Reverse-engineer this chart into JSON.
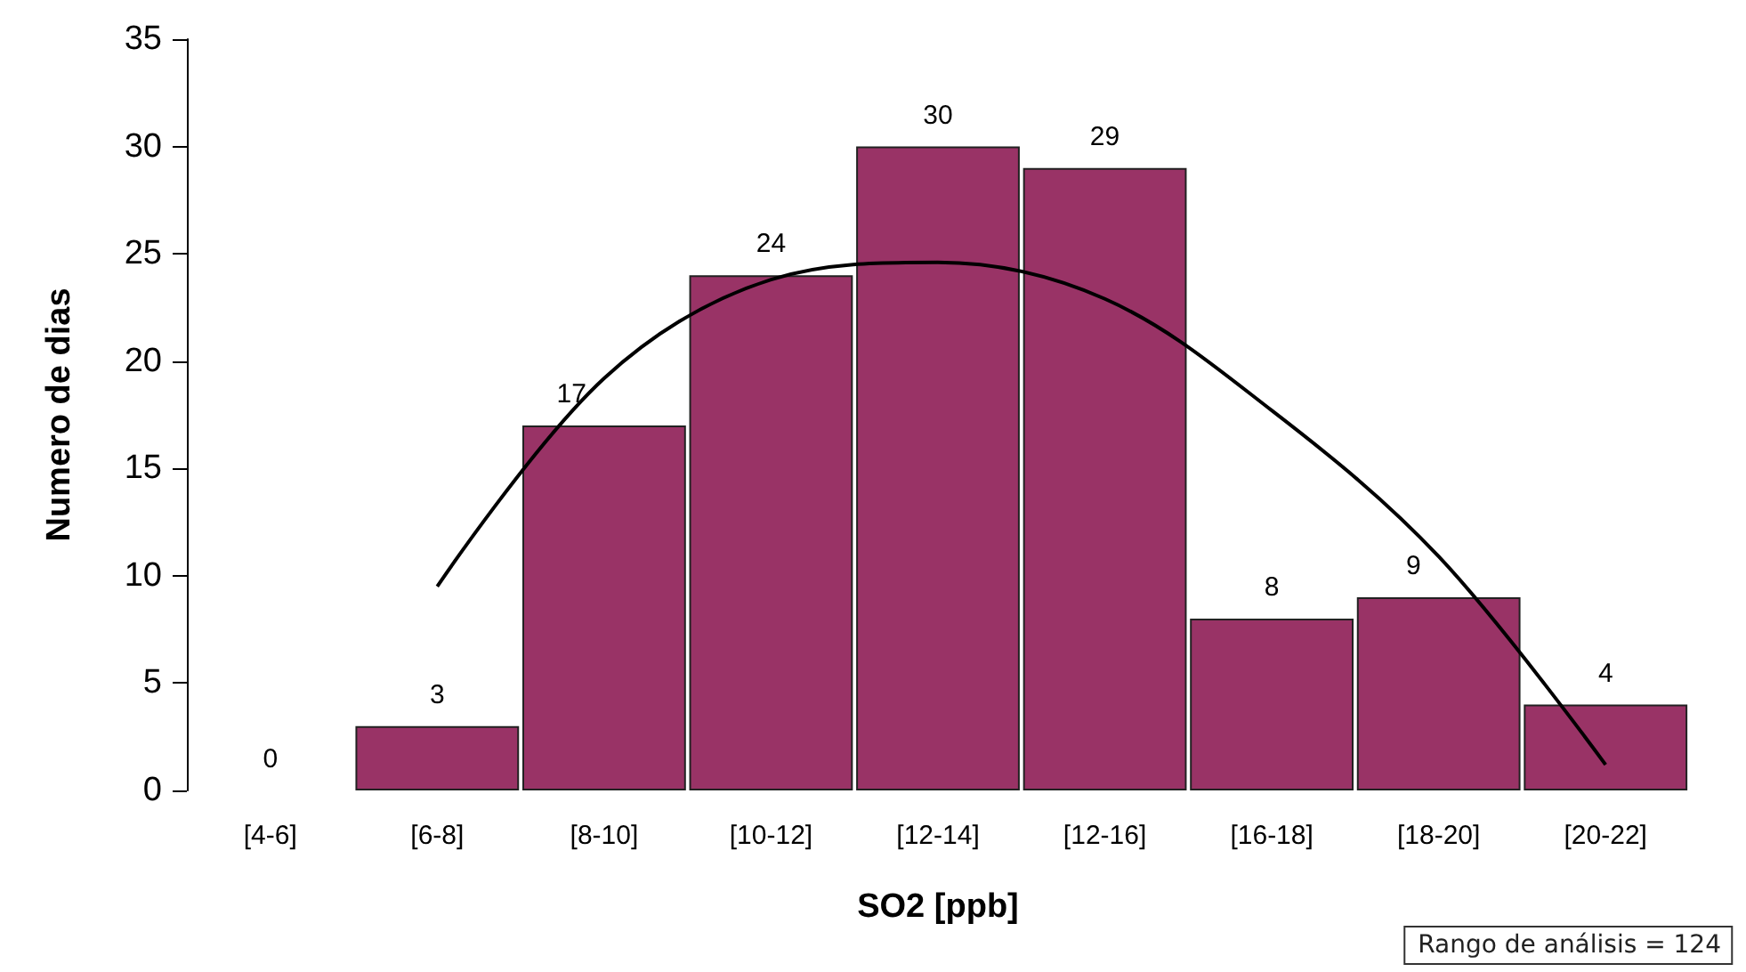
{
  "chart_data": {
    "type": "bar",
    "xlabel": "SO2 [ppb]",
    "ylabel": "Numero de dias",
    "categories": [
      "[4-6]",
      "[6-8]",
      "[8-10]",
      "[10-12]",
      "[12-14]",
      "[12-16]",
      "[16-18]",
      "[18-20]",
      "[20-22]"
    ],
    "series": [
      {
        "color": "#993366",
        "values": [
          0,
          3,
          17,
          24,
          30,
          29,
          8,
          9,
          4
        ],
        "value_labels": [
          "0",
          "3",
          "17",
          "24",
          "30",
          "29",
          "8",
          "9",
          "4"
        ]
      },
      {
        "type": "line",
        "color": "#000000",
        "x": [
          "[6-8]",
          "[8-10]",
          "[10-12]",
          "[12-14]",
          "[12-16]",
          "[16-18]",
          "[18-20]",
          "[20-22]"
        ],
        "values": [
          9.5,
          19.2,
          23.8,
          24.6,
          22.9,
          17.7,
          10.9,
          1.2
        ]
      }
    ],
    "ylim": [
      0,
      35
    ],
    "yticks": [
      0,
      5,
      10,
      15,
      20,
      25,
      30,
      35
    ],
    "grid": false,
    "marker": "none",
    "line_style": "solid",
    "annotations": [
      "Rango de análisis = 124"
    ]
  }
}
